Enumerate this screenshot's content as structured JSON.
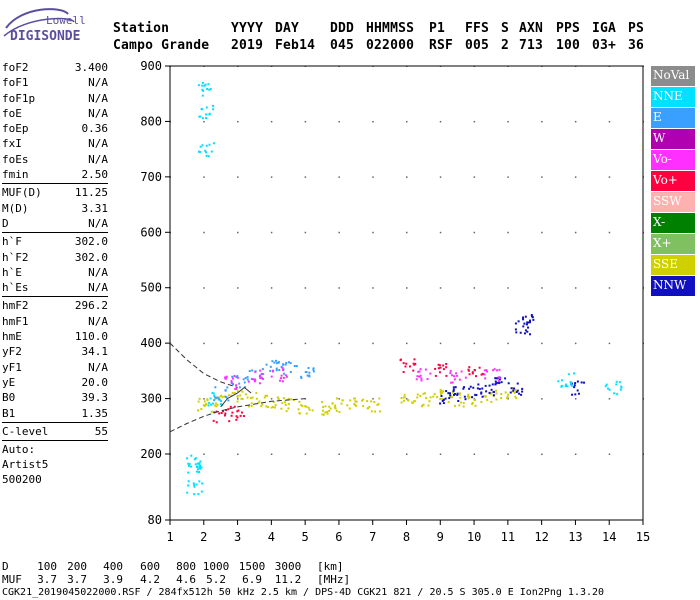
{
  "logo": {
    "line1": "Lowell",
    "line2": "DIGISONDE"
  },
  "header": {
    "row1": [
      "Station",
      "YYYY",
      "DAY",
      "DDD",
      "HHMMSS",
      "P1",
      "FFS",
      "S",
      "AXN",
      "PPS",
      "IGA",
      "PS"
    ],
    "row2": [
      "Campo Grande",
      "2019",
      "Feb14",
      "045",
      "022000",
      "RSF",
      "005",
      "2",
      "713",
      "100",
      "03+",
      "36"
    ]
  },
  "params": {
    "group1": [
      {
        "label": "foF2",
        "value": "3.400"
      },
      {
        "label": "foF1",
        "value": "N/A"
      },
      {
        "label": "foF1p",
        "value": "N/A"
      },
      {
        "label": "foE",
        "value": "N/A"
      },
      {
        "label": "foEp",
        "value": "0.36"
      },
      {
        "label": "fxI",
        "value": "N/A"
      },
      {
        "label": "foEs",
        "value": "N/A"
      },
      {
        "label": "fmin",
        "value": "2.50"
      }
    ],
    "group2": [
      {
        "label": "MUF(D)",
        "value": "11.25"
      },
      {
        "label": "M(D)",
        "value": "3.31"
      },
      {
        "label": "D",
        "value": "N/A"
      }
    ],
    "group3": [
      {
        "label": "h`F",
        "value": "302.0"
      },
      {
        "label": "h`F2",
        "value": "302.0"
      },
      {
        "label": "h`E",
        "value": "N/A"
      },
      {
        "label": "h`Es",
        "value": "N/A"
      }
    ],
    "group4": [
      {
        "label": "hmF2",
        "value": "296.2"
      },
      {
        "label": "hmF1",
        "value": "N/A"
      },
      {
        "label": "hmE",
        "value": "110.0"
      },
      {
        "label": "yF2",
        "value": "34.1"
      },
      {
        "label": "yF1",
        "value": "N/A"
      },
      {
        "label": "yE",
        "value": "20.0"
      },
      {
        "label": "B0",
        "value": "39.3"
      },
      {
        "label": "B1",
        "value": "1.35"
      }
    ],
    "clevel": {
      "label": "C-level",
      "value": "55"
    },
    "auto": [
      "Auto:",
      "Artist5",
      "500200"
    ]
  },
  "legend": [
    {
      "label": "NoVal",
      "color": "#8c8c8c"
    },
    {
      "label": "NNE",
      "color": "#00e0ff"
    },
    {
      "label": "E",
      "color": "#3aa0ff"
    },
    {
      "label": "W",
      "color": "#b000b0"
    },
    {
      "label": "Vo-",
      "color": "#ff30ff"
    },
    {
      "label": "Vo+",
      "color": "#ff0040"
    },
    {
      "label": "SSW",
      "color": "#ffb0b0"
    },
    {
      "label": "X-",
      "color": "#008000"
    },
    {
      "label": "X+",
      "color": "#80c060"
    },
    {
      "label": "SSE",
      "color": "#d0d000"
    },
    {
      "label": "NNW",
      "color": "#1010c0"
    }
  ],
  "chart_data": {
    "type": "scatter",
    "x_ticks": [
      "1",
      "2",
      "3",
      "4",
      "5",
      "6",
      "7",
      "8",
      "9",
      "10",
      "11",
      "12",
      "13",
      "14",
      "15"
    ],
    "y_ticks": [
      "900",
      "800",
      "700",
      "600",
      "500",
      "400",
      "300",
      "200",
      "80"
    ],
    "xlim": [
      1,
      15
    ],
    "ylim_labels": [
      80,
      900
    ],
    "grid": true,
    "series": [
      {
        "name": "SSE",
        "color": "#d0d000",
        "points": [
          [
            2.0,
            290
          ],
          [
            2.5,
            300
          ],
          [
            3.0,
            305
          ],
          [
            3.5,
            300
          ],
          [
            4.0,
            295
          ],
          [
            4.5,
            290
          ],
          [
            5.0,
            285
          ],
          [
            5.5,
            285
          ],
          [
            6.0,
            290
          ],
          [
            6.5,
            290
          ],
          [
            7.0,
            290
          ],
          [
            8.0,
            300
          ],
          [
            8.5,
            300
          ],
          [
            9.0,
            305
          ],
          [
            9.5,
            300
          ],
          [
            10.0,
            300
          ],
          [
            10.5,
            305
          ],
          [
            11.0,
            310
          ]
        ]
      },
      {
        "name": "NNW",
        "color": "#1010c0",
        "points": [
          [
            9.2,
            305
          ],
          [
            9.6,
            310
          ],
          [
            10.0,
            315
          ],
          [
            10.4,
            320
          ],
          [
            10.8,
            330
          ],
          [
            11.2,
            320
          ],
          [
            11.4,
            430
          ],
          [
            11.6,
            440
          ],
          [
            13.0,
            320
          ]
        ]
      },
      {
        "name": "NNE",
        "color": "#00e0ff",
        "points": [
          [
            1.7,
            190
          ],
          [
            1.7,
            175
          ],
          [
            1.7,
            140
          ],
          [
            2.05,
            860
          ],
          [
            2.05,
            820
          ],
          [
            2.05,
            750
          ],
          [
            2.3,
            300
          ],
          [
            12.7,
            335
          ],
          [
            14.1,
            320
          ]
        ]
      },
      {
        "name": "E",
        "color": "#3aa0ff",
        "points": [
          [
            2.5,
            310
          ],
          [
            3.0,
            330
          ],
          [
            3.5,
            345
          ],
          [
            4.0,
            360
          ],
          [
            4.5,
            355
          ],
          [
            5.0,
            350
          ]
        ]
      },
      {
        "name": "Vo-",
        "color": "#ff30ff",
        "points": [
          [
            2.8,
            330
          ],
          [
            3.5,
            340
          ],
          [
            4.2,
            345
          ],
          [
            8.5,
            345
          ],
          [
            9.5,
            340
          ],
          [
            10.5,
            345
          ]
        ]
      },
      {
        "name": "Vo+",
        "color": "#ff0040",
        "points": [
          [
            2.5,
            270
          ],
          [
            3.0,
            275
          ],
          [
            8.0,
            360
          ],
          [
            9.0,
            355
          ],
          [
            10.0,
            350
          ]
        ]
      }
    ],
    "curves": [
      {
        "name": "dashed-upper",
        "points": [
          [
            1.0,
            400
          ],
          [
            1.5,
            370
          ],
          [
            2.0,
            345
          ],
          [
            2.5,
            330
          ],
          [
            3.0,
            320
          ]
        ]
      },
      {
        "name": "dashed-lower",
        "points": [
          [
            1.0,
            240
          ],
          [
            1.5,
            255
          ],
          [
            2.0,
            268
          ],
          [
            2.5,
            278
          ],
          [
            3.0,
            285
          ],
          [
            4.0,
            295
          ],
          [
            5.0,
            300
          ]
        ]
      },
      {
        "name": "profile",
        "points": [
          [
            2.5,
            285
          ],
          [
            2.7,
            300
          ],
          [
            3.0,
            310
          ],
          [
            3.2,
            320
          ],
          [
            3.4,
            310
          ]
        ]
      }
    ]
  },
  "footer": {
    "d_label": "D",
    "d_values": [
      "100",
      "200",
      "400",
      "600",
      "800",
      "1000",
      "1500",
      "3000"
    ],
    "d_unit": "[km]",
    "muf_label": "MUF",
    "muf_values": [
      "3.7",
      "3.7",
      "3.9",
      "4.2",
      "4.6",
      "5.2",
      "6.9",
      "11.2"
    ],
    "muf_unit": "[MHz]",
    "status": "CGK21_2019045022000.RSF / 284fx512h 50 kHz 2.5 km / DPS-4D CGK21 821 / 20.5 S 305.0 E Ion2Png 1.3.20"
  }
}
